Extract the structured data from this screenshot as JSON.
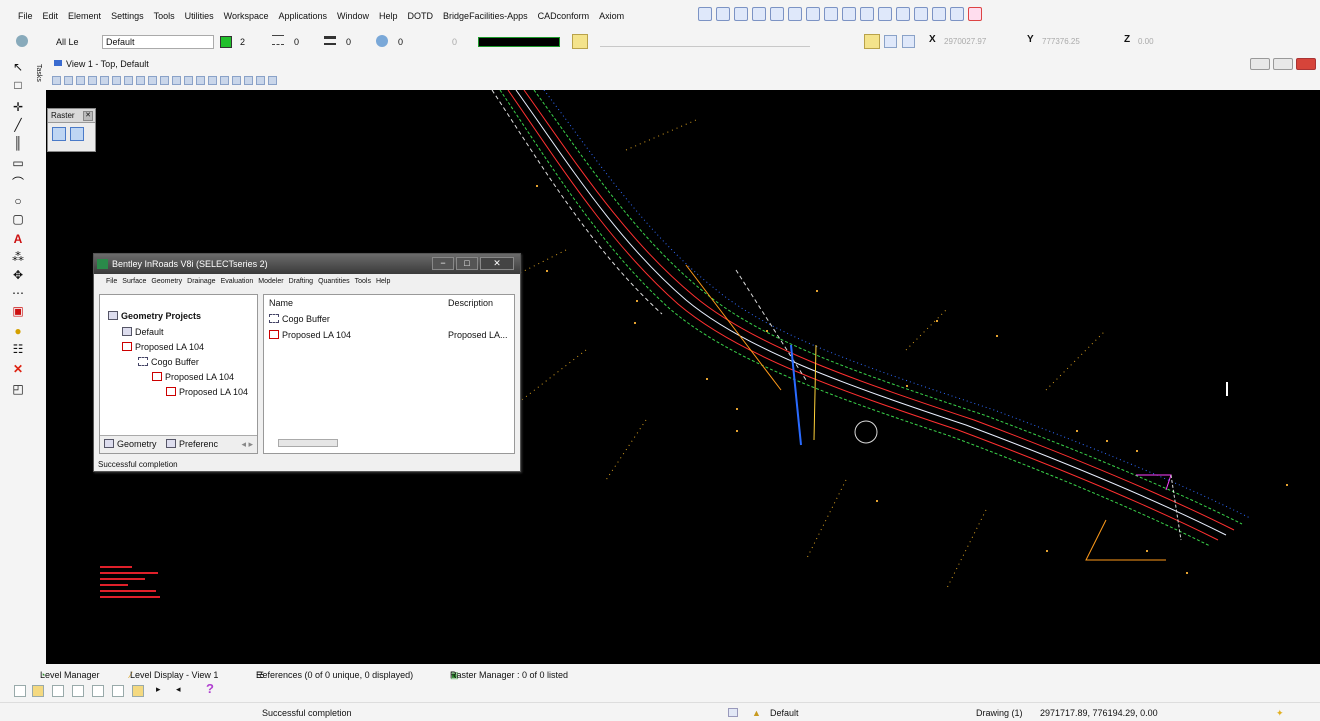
{
  "menubar": {
    "items": [
      "File",
      "Edit",
      "Element",
      "Settings",
      "Tools",
      "Utilities",
      "Workspace",
      "Applications",
      "Window",
      "Help",
      "DOTD",
      "BridgeFacilities-Apps",
      "CADconform",
      "Axiom"
    ]
  },
  "attributes": {
    "level_filter": "All Le",
    "level": "Default",
    "color_value": "2",
    "style_value": "0",
    "weight_value": "0",
    "transparency_value": "0",
    "priority_value": "0",
    "color_swatch": "#21c02b",
    "x_label": "X",
    "x_value": "2970027.97",
    "y_label": "Y",
    "y_value": "777376.25",
    "z_label": "Z",
    "z_value": "0.00"
  },
  "tasks": {
    "label": "Tasks",
    "tools": [
      "select-arrow-icon",
      "fence-icon",
      "place-point-icon",
      "line-icon",
      "measure-icon",
      "dimension-icon",
      "arc-icon",
      "circle-icon",
      "polygon-icon",
      "text-icon",
      "cell-icon",
      "move-icon",
      "copy-icon",
      "modify-icon",
      "fill-icon",
      "group-icon",
      "delete-icon",
      "view-icon"
    ]
  },
  "view": {
    "title": "View 1 - Top, Default",
    "background": "#000000"
  },
  "raster_palette": {
    "title": "Raster"
  },
  "inroads_dialog": {
    "title": "Bentley InRoads V8i (SELECTseries 2)",
    "menu": [
      "File",
      "Surface",
      "Geometry",
      "Drainage",
      "Evaluation",
      "Modeler",
      "Drafting",
      "Quantities",
      "Tools",
      "Help"
    ],
    "tree": {
      "header": "Geometry Projects",
      "items": [
        "Default",
        "Proposed LA 104",
        "Cogo Buffer",
        "Proposed LA 104",
        "Proposed LA 104"
      ]
    },
    "tabs": [
      "Geometry",
      "Preferenc"
    ],
    "list": {
      "columns": [
        "Name",
        "Description"
      ],
      "rows": [
        {
          "name": "Cogo Buffer",
          "description": ""
        },
        {
          "name": "Proposed LA 104",
          "description": "Proposed LA..."
        }
      ]
    },
    "status": "Successful completion"
  },
  "dockbar": {
    "level_manager": "Level Manager",
    "level_display": "Level Display - View 1",
    "references": "References (0 of 0 unique, 0 displayed)",
    "raster_manager": "Raster Manager : 0 of 0 listed"
  },
  "statusbar": {
    "message": "Successful completion",
    "active_level": "Default",
    "model": "Drawing (1)",
    "cursor_coords": "2971717.89, 776194.29, 0.00"
  }
}
